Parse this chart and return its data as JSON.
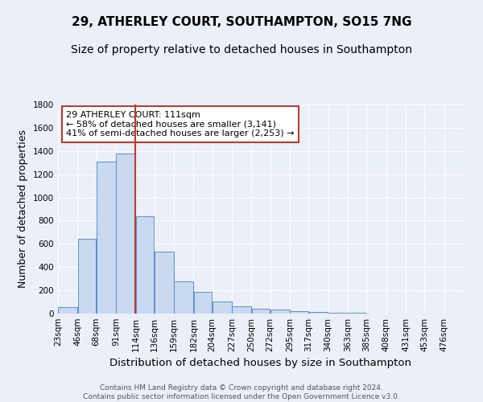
{
  "title": "29, ATHERLEY COURT, SOUTHAMPTON, SO15 7NG",
  "subtitle": "Size of property relative to detached houses in Southampton",
  "xlabel": "Distribution of detached houses by size in Southampton",
  "ylabel": "Number of detached properties",
  "footer_line1": "Contains HM Land Registry data © Crown copyright and database right 2024.",
  "footer_line2": "Contains public sector information licensed under the Open Government Licence v3.0.",
  "annotation_line1": "29 ATHERLEY COURT: 111sqm",
  "annotation_line2": "← 58% of detached houses are smaller (3,141)",
  "annotation_line3": "41% of semi-detached houses are larger (2,253) →",
  "bar_left_edges": [
    23,
    46,
    68,
    91,
    114,
    136,
    159,
    182,
    204,
    227,
    250,
    272,
    295,
    317,
    340,
    363,
    385,
    408,
    431,
    453
  ],
  "bar_widths": [
    23,
    22,
    23,
    23,
    22,
    23,
    23,
    22,
    23,
    23,
    22,
    23,
    22,
    23,
    23,
    22,
    23,
    23,
    22,
    23
  ],
  "bar_heights": [
    55,
    645,
    1310,
    1380,
    840,
    530,
    275,
    185,
    105,
    65,
    40,
    35,
    22,
    12,
    5,
    10,
    0,
    0,
    0,
    0
  ],
  "bar_color_fill": "#c9d9f0",
  "bar_color_edge": "#5b8fce",
  "property_line_x": 114,
  "property_line_color": "#c0392b",
  "annotation_box_color": "#c0392b",
  "ylim": [
    0,
    1800
  ],
  "yticks": [
    0,
    200,
    400,
    600,
    800,
    1000,
    1200,
    1400,
    1600,
    1800
  ],
  "x_tick_labels": [
    "23sqm",
    "46sqm",
    "68sqm",
    "91sqm",
    "114sqm",
    "136sqm",
    "159sqm",
    "182sqm",
    "204sqm",
    "227sqm",
    "250sqm",
    "272sqm",
    "295sqm",
    "317sqm",
    "340sqm",
    "363sqm",
    "385sqm",
    "408sqm",
    "431sqm",
    "453sqm",
    "476sqm"
  ],
  "x_tick_positions": [
    23,
    46,
    68,
    91,
    114,
    136,
    159,
    182,
    204,
    227,
    250,
    272,
    295,
    317,
    340,
    363,
    385,
    408,
    431,
    453,
    476
  ],
  "background_color": "#eaeff8",
  "plot_bg_color": "#eaeff8",
  "grid_color": "#ffffff",
  "title_fontsize": 11,
  "subtitle_fontsize": 10,
  "tick_fontsize": 7.5,
  "ylabel_fontsize": 9,
  "xlabel_fontsize": 9.5,
  "footer_fontsize": 6.5
}
